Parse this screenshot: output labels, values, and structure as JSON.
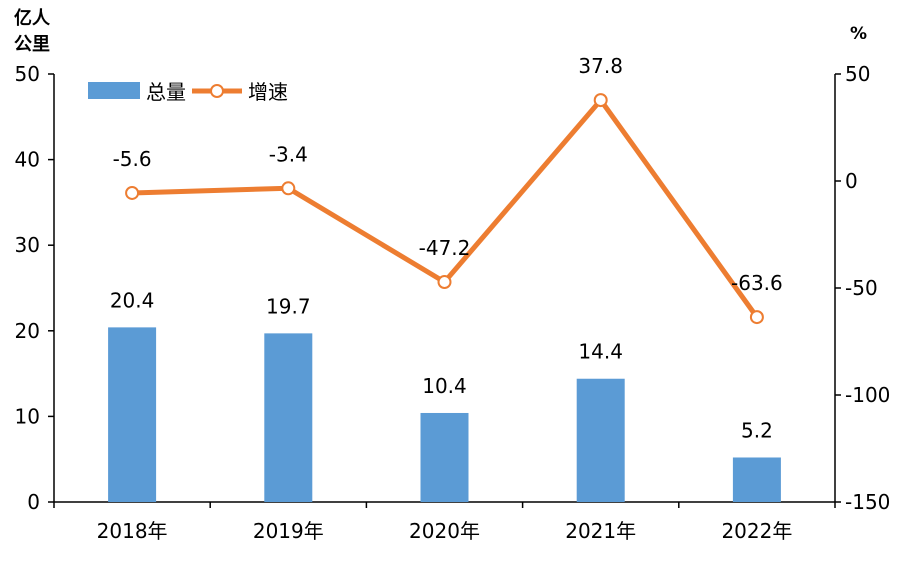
{
  "chart_data": {
    "type": "bar",
    "categories": [
      "2018年",
      "2019年",
      "2020年",
      "2021年",
      "2022年"
    ],
    "series": [
      {
        "name": "总量",
        "type": "bar",
        "axis": "left",
        "values": [
          20.4,
          19.7,
          10.4,
          14.4,
          5.2
        ],
        "color": "#5b9bd5"
      },
      {
        "name": "增速",
        "type": "line",
        "axis": "right",
        "values": [
          -5.6,
          -3.4,
          -47.2,
          37.8,
          -63.6
        ],
        "color": "#ed7d31"
      }
    ],
    "ylabel_left": [
      "亿人",
      "公里"
    ],
    "ylabel_right": "%",
    "ylim_left": [
      0,
      50
    ],
    "yticks_left": [
      0,
      10,
      20,
      30,
      40,
      50
    ],
    "ylim_right": [
      -150,
      50
    ],
    "yticks_right": [
      -150,
      -100,
      -50,
      0,
      50
    ],
    "legend_position": "top-left",
    "grid": false
  }
}
